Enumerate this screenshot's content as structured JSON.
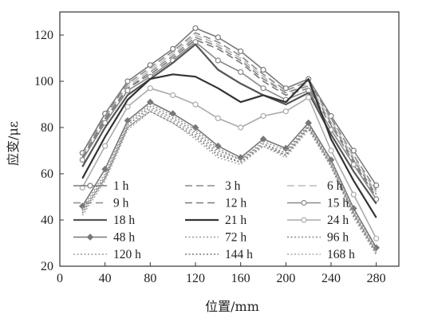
{
  "chart_data": {
    "type": "line",
    "title": "",
    "xlabel": "位置/mm",
    "ylabel": "应变/με",
    "xlim": [
      0,
      300
    ],
    "ylim": [
      20,
      130
    ],
    "x_ticks": [
      0,
      40,
      80,
      120,
      160,
      200,
      240,
      280
    ],
    "y_ticks": [
      20,
      40,
      60,
      80,
      100,
      120
    ],
    "grid": false,
    "legend_position": "inside-bottom",
    "x": [
      20,
      40,
      60,
      80,
      100,
      120,
      140,
      160,
      180,
      200,
      220,
      240,
      260,
      280
    ],
    "series": [
      {
        "name": "1 h",
        "color": "#7a7a7a",
        "dash": "solid",
        "marker": "circle-open",
        "values": [
          69,
          86,
          100,
          107,
          114,
          123,
          119,
          113,
          105,
          97,
          101,
          85,
          70,
          55
        ]
      },
      {
        "name": "3 h",
        "color": "#8a8a8a",
        "dash": "dashed",
        "marker": "none",
        "values": [
          68,
          85,
          99,
          106,
          113,
          121,
          117,
          111,
          103,
          96,
          100,
          84,
          68,
          53
        ]
      },
      {
        "name": "6 h",
        "color": "#bbbbbb",
        "dash": "dashed",
        "marker": "none",
        "values": [
          68,
          84,
          98,
          105,
          112,
          120,
          116,
          110,
          102,
          95,
          99,
          83,
          67,
          52
        ]
      },
      {
        "name": "9 h",
        "color": "#8a8a8a",
        "dash": "dashed",
        "marker": "none",
        "values": [
          67,
          84,
          97,
          104,
          111,
          119,
          115,
          109,
          101,
          95,
          98,
          82,
          66,
          51
        ]
      },
      {
        "name": "12 h",
        "color": "#7a7a7a",
        "dash": "dashed",
        "marker": "none",
        "values": [
          67,
          83,
          97,
          103,
          110,
          118,
          114,
          108,
          100,
          94,
          97,
          81,
          65,
          50
        ]
      },
      {
        "name": "15 h",
        "color": "#8a8a8a",
        "dash": "solid",
        "marker": "circle-open",
        "values": [
          66,
          82,
          96,
          102,
          109,
          117,
          109,
          104,
          97,
          92,
          96,
          79,
          64,
          49
        ]
      },
      {
        "name": "18 h",
        "color": "#555555",
        "dash": "solid",
        "marker": "none",
        "values": [
          63,
          80,
          94,
          101,
          108,
          116,
          105,
          99,
          94,
          90,
          95,
          77,
          61,
          47
        ]
      },
      {
        "name": "21 h",
        "color": "#333333",
        "dash": "solid",
        "marker": "none",
        "values": [
          58,
          76,
          92,
          101,
          103,
          102,
          97,
          91,
          94,
          91,
          101,
          75,
          57,
          41
        ]
      },
      {
        "name": "24 h",
        "color": "#aaaaaa",
        "dash": "solid",
        "marker": "circle-open",
        "values": [
          54,
          72,
          89,
          97,
          94,
          90,
          84,
          80,
          85,
          87,
          93,
          70,
          51,
          32
        ]
      },
      {
        "name": "48 h",
        "color": "#777777",
        "dash": "solid",
        "marker": "diamond-filled",
        "values": [
          46,
          62,
          83,
          91,
          86,
          80,
          72,
          67,
          75,
          71,
          82,
          66,
          45,
          28
        ]
      },
      {
        "name": "72 h",
        "color": "#999999",
        "dash": "dotted",
        "marker": "none",
        "values": [
          45,
          60,
          82,
          90,
          85,
          79,
          71,
          66,
          74,
          70,
          81,
          65,
          44,
          27
        ]
      },
      {
        "name": "96 h",
        "color": "#888888",
        "dash": "dotted",
        "marker": "none",
        "values": [
          44,
          59,
          81,
          89,
          84,
          78,
          70,
          66,
          73,
          69,
          81,
          64,
          43,
          26
        ]
      },
      {
        "name": "120 h",
        "color": "#9a9a9a",
        "dash": "dotted",
        "marker": "none",
        "values": [
          44,
          58,
          80,
          88,
          83,
          77,
          69,
          65,
          73,
          68,
          80,
          64,
          43,
          26
        ]
      },
      {
        "name": "144 h",
        "color": "#777777",
        "dash": "dotted",
        "marker": "none",
        "values": [
          43,
          58,
          80,
          87,
          82,
          76,
          68,
          65,
          72,
          68,
          80,
          63,
          42,
          25
        ]
      },
      {
        "name": "168 h",
        "color": "#aaaaaa",
        "dash": "dotted",
        "marker": "none",
        "values": [
          42,
          57,
          79,
          87,
          82,
          75,
          67,
          64,
          72,
          67,
          79,
          63,
          41,
          25
        ]
      }
    ]
  }
}
